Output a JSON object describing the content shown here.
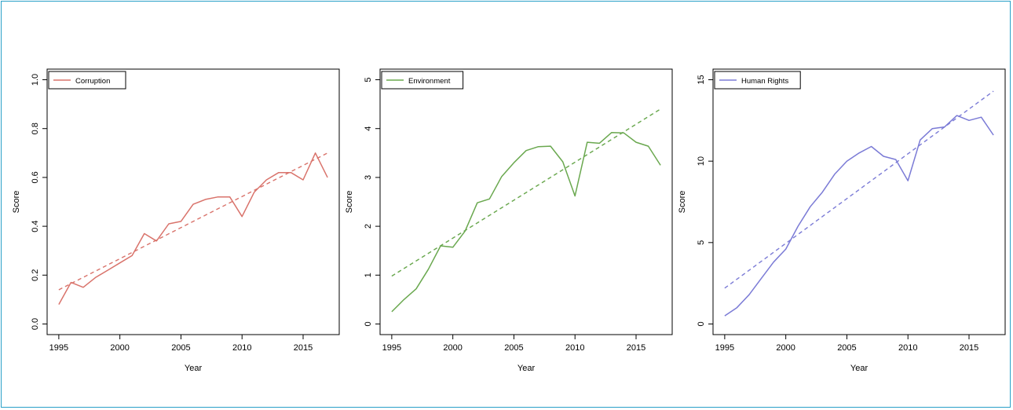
{
  "chart_data": [
    {
      "type": "line",
      "xlabel": "Year",
      "ylabel": "Score",
      "xlim": [
        1995,
        2017
      ],
      "ylim": [
        0,
        1.0
      ],
      "xticks": [
        1995,
        2000,
        2005,
        2010,
        2015
      ],
      "yticks": [
        0.0,
        0.2,
        0.4,
        0.6,
        0.8,
        1.0
      ],
      "ytick_labels": [
        "0.0",
        "0.2",
        "0.4",
        "0.6",
        "0.8",
        "1.0"
      ],
      "legend_position": "top-left",
      "grid": false,
      "series": [
        {
          "name": "Corruption",
          "color": "#d9736b",
          "x": [
            1995,
            1996,
            1997,
            1998,
            1999,
            2000,
            2001,
            2002,
            2003,
            2004,
            2005,
            2006,
            2007,
            2008,
            2009,
            2010,
            2011,
            2012,
            2013,
            2014,
            2015,
            2016,
            2017
          ],
          "values": [
            0.08,
            0.17,
            0.15,
            0.19,
            0.22,
            0.25,
            0.28,
            0.37,
            0.34,
            0.41,
            0.42,
            0.49,
            0.51,
            0.52,
            0.52,
            0.44,
            0.54,
            0.59,
            0.62,
            0.62,
            0.59,
            0.7,
            0.6
          ]
        }
      ],
      "trend": {
        "style": "dashed",
        "color": "#d9736b",
        "x": [
          1995,
          2017
        ],
        "values": [
          0.14,
          0.7
        ]
      }
    },
    {
      "type": "line",
      "xlabel": "Year",
      "ylabel": "Score",
      "xlim": [
        1995,
        2017
      ],
      "ylim": [
        0,
        5
      ],
      "xticks": [
        1995,
        2000,
        2005,
        2010,
        2015
      ],
      "yticks": [
        0,
        1,
        2,
        3,
        4,
        5
      ],
      "ytick_labels": [
        "0",
        "1",
        "2",
        "3",
        "4",
        "5"
      ],
      "legend_position": "top-left",
      "grid": false,
      "series": [
        {
          "name": "Environment",
          "color": "#6aa84f",
          "x": [
            1995,
            1996,
            1997,
            1998,
            1999,
            2000,
            2001,
            2002,
            2003,
            2004,
            2005,
            2006,
            2007,
            2008,
            2009,
            2010,
            2011,
            2012,
            2013,
            2014,
            2015,
            2016,
            2017
          ],
          "values": [
            0.25,
            0.5,
            0.72,
            1.12,
            1.6,
            1.57,
            1.9,
            2.48,
            2.56,
            3.02,
            3.3,
            3.55,
            3.63,
            3.64,
            3.32,
            2.62,
            3.72,
            3.7,
            3.92,
            3.91,
            3.72,
            3.64,
            3.25
          ]
        }
      ],
      "trend": {
        "style": "dashed",
        "color": "#6aa84f",
        "x": [
          1995,
          2017
        ],
        "values": [
          0.98,
          4.4
        ]
      }
    },
    {
      "type": "line",
      "xlabel": "Year",
      "ylabel": "Score",
      "xlim": [
        1995,
        2017
      ],
      "ylim": [
        0,
        15
      ],
      "xticks": [
        1995,
        2000,
        2005,
        2010,
        2015
      ],
      "yticks": [
        0,
        5,
        10,
        15
      ],
      "ytick_labels": [
        "0",
        "5",
        "10",
        "15"
      ],
      "legend_position": "top-left",
      "grid": false,
      "series": [
        {
          "name": "Human Rights",
          "color": "#7b7bd6",
          "x": [
            1995,
            1996,
            1997,
            1998,
            1999,
            2000,
            2001,
            2002,
            2003,
            2004,
            2005,
            2006,
            2007,
            2008,
            2009,
            2010,
            2011,
            2012,
            2013,
            2014,
            2015,
            2016,
            2017
          ],
          "values": [
            0.5,
            1.0,
            1.8,
            2.8,
            3.8,
            4.6,
            6.0,
            7.2,
            8.1,
            9.2,
            10.0,
            10.5,
            10.9,
            10.3,
            10.1,
            8.8,
            11.3,
            12.0,
            12.1,
            12.8,
            12.5,
            12.7,
            11.6
          ]
        }
      ],
      "trend": {
        "style": "dashed",
        "color": "#7b7bd6",
        "x": [
          1995,
          2017
        ],
        "values": [
          2.2,
          14.3
        ]
      }
    }
  ]
}
